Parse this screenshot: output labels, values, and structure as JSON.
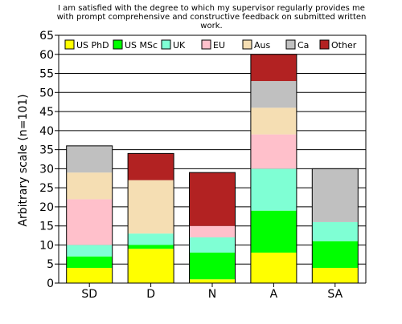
{
  "chart_data": {
    "type": "bar",
    "stacked": true,
    "title_lines": [
      "I am satisfied with the degree to which my supervisor regularly provides me",
      "with prompt comprehensive and constructive feedback on submitted written",
      "work."
    ],
    "xlabel": "",
    "ylabel": "Arbitrary scale (n=101)",
    "ylim": [
      0,
      65
    ],
    "yticks": [
      0,
      5,
      10,
      15,
      20,
      25,
      30,
      35,
      40,
      45,
      50,
      55,
      60,
      65
    ],
    "grid": "horizontal",
    "legend_position": "top",
    "categories": [
      "SD",
      "D",
      "N",
      "A",
      "SA"
    ],
    "series": [
      {
        "name": "US PhD",
        "color": "#ffff00",
        "values": [
          4,
          9,
          1,
          8,
          4
        ]
      },
      {
        "name": "US MSc",
        "color": "#00ff00",
        "values": [
          3,
          1,
          7,
          11,
          7
        ]
      },
      {
        "name": "UK",
        "color": "#7fffd4",
        "values": [
          3,
          3,
          4,
          11,
          5
        ]
      },
      {
        "name": "EU",
        "color": "#ffc0cb",
        "values": [
          12,
          0,
          3,
          9,
          0
        ]
      },
      {
        "name": "Aus",
        "color": "#f5deb3",
        "values": [
          7,
          14,
          0,
          7,
          0
        ]
      },
      {
        "name": "Ca",
        "color": "#c0c0c0",
        "values": [
          7,
          0,
          0,
          7,
          14
        ]
      },
      {
        "name": "Other",
        "color": "#b22222",
        "values": [
          0,
          7,
          14,
          7,
          0
        ]
      }
    ]
  }
}
